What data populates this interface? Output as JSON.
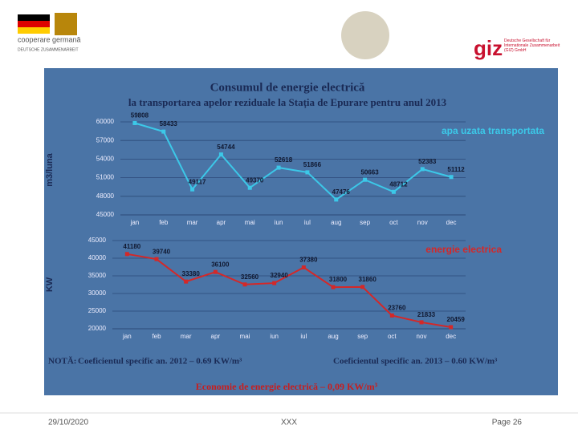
{
  "header": {
    "logo_left": "cooperare germană",
    "logo_left_sub": "DEUTSCHE ZUSAMMENARBEIT",
    "logo_right": "giz",
    "logo_right_sub": "Deutsche Gesellschaft für Internationale Zusammenarbeit (GIZ) GmbH"
  },
  "chart_data": [
    {
      "type": "line",
      "title": "Consumul de energie electrică",
      "subtitle": "la transportarea apelor reziduale la Stația de Epurare pentru anul 2013",
      "y_label": "m3/luna",
      "categories": [
        "jan",
        "feb",
        "mar",
        "apr",
        "mai",
        "iun",
        "iul",
        "aug",
        "sep",
        "oct",
        "nov",
        "dec"
      ],
      "series": [
        {
          "name": "apa uzata transportata",
          "color": "#3cc8e8",
          "values": [
            59808,
            58433,
            49117,
            54744,
            49370,
            52618,
            51866,
            47476,
            50663,
            48712,
            52383,
            51112
          ]
        }
      ],
      "ylim": [
        45000,
        60000
      ],
      "yticks": [
        45000,
        48000,
        51000,
        54000,
        57000,
        60000
      ],
      "grid": true
    },
    {
      "type": "line",
      "y_label": "KW",
      "categories": [
        "jan",
        "feb",
        "mar",
        "apr",
        "mai",
        "iun",
        "iul",
        "aug",
        "sep",
        "oct",
        "nov",
        "dec"
      ],
      "series": [
        {
          "name": "energie electrica",
          "color": "#d42828",
          "values": [
            41180,
            39740,
            33380,
            36100,
            32560,
            32940,
            37380,
            31800,
            31860,
            23760,
            21833,
            20459
          ]
        }
      ],
      "ylim": [
        20000,
        45000
      ],
      "yticks": [
        20000,
        25000,
        30000,
        35000,
        40000,
        45000
      ],
      "grid": true
    }
  ],
  "notes": {
    "label": "NOTĂ:",
    "note_2012": "Coeficientul specific an. 2012 – 0.69 KW/m³",
    "note_2013": "Coeficientul specific an. 2013 – 0.60 KW/m³",
    "saving": "Economie de energie electrică – 0,09 KW/m³"
  },
  "footer": {
    "date": "29/10/2020",
    "center": "XXX",
    "page": "Page 26"
  }
}
